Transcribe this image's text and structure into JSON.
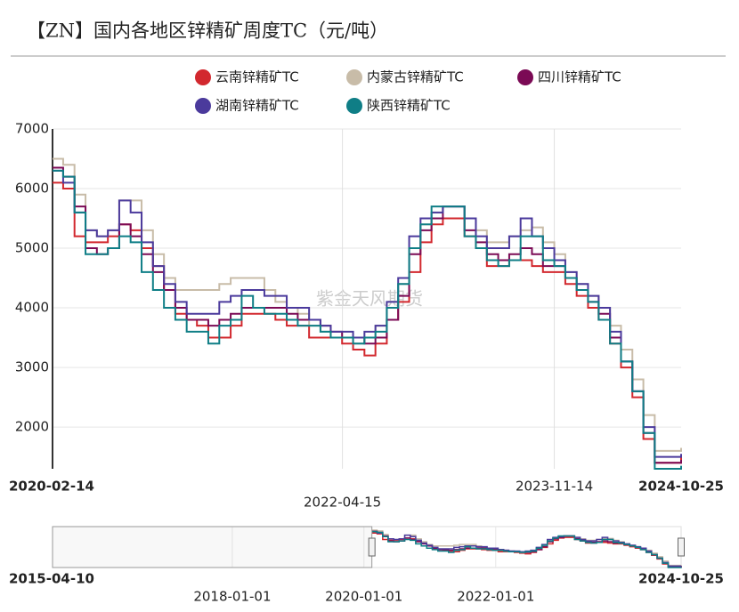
{
  "chart_data": {
    "type": "line",
    "step": true,
    "title": "【ZN】国内各地区锌精矿周度TC（元/吨）",
    "watermark": "紫金天风期货",
    "x": [
      "2020-02-14",
      "2020-03-14",
      "2020-04-14",
      "2020-05-14",
      "2020-06-14",
      "2020-07-14",
      "2020-08-14",
      "2020-09-14",
      "2020-10-14",
      "2020-11-14",
      "2020-12-14",
      "2021-01-14",
      "2021-02-14",
      "2021-03-14",
      "2021-04-14",
      "2021-05-14",
      "2021-06-14",
      "2021-07-14",
      "2021-08-14",
      "2021-09-14",
      "2021-10-14",
      "2021-11-14",
      "2021-12-14",
      "2022-01-14",
      "2022-02-14",
      "2022-03-14",
      "2022-04-14",
      "2022-05-14",
      "2022-06-14",
      "2022-07-14",
      "2022-08-14",
      "2022-09-14",
      "2022-10-14",
      "2022-11-14",
      "2022-12-14",
      "2023-01-14",
      "2023-02-14",
      "2023-03-14",
      "2023-04-14",
      "2023-05-14",
      "2023-06-14",
      "2023-07-14",
      "2023-08-14",
      "2023-09-14",
      "2023-10-14",
      "2023-11-14",
      "2023-12-14",
      "2024-01-14",
      "2024-02-14",
      "2024-03-14",
      "2024-04-14",
      "2024-05-14",
      "2024-06-14",
      "2024-07-14",
      "2024-08-14",
      "2024-09-14",
      "2024-10-14",
      "2024-10-25"
    ],
    "series": [
      {
        "name": "云南锌精矿TC",
        "color": "#d2282e",
        "values": [
          6100,
          6000,
          5200,
          5100,
          5100,
          5200,
          5400,
          5300,
          5000,
          4700,
          4300,
          3900,
          3800,
          3700,
          3500,
          3500,
          3700,
          3900,
          3900,
          3900,
          3800,
          3700,
          3700,
          3500,
          3500,
          3500,
          3400,
          3300,
          3200,
          3400,
          3800,
          4100,
          4600,
          5100,
          5400,
          5500,
          5500,
          5200,
          5000,
          4700,
          4700,
          4800,
          4800,
          4700,
          4600,
          4600,
          4400,
          4200,
          4000,
          3800,
          3400,
          3000,
          2500,
          1800,
          1400,
          1400,
          1400,
          1500
        ]
      },
      {
        "name": "内蒙古锌精矿TC",
        "color": "#c8bca8",
        "values": [
          6500,
          6400,
          5900,
          5300,
          5200,
          5300,
          5800,
          5800,
          5300,
          4900,
          4500,
          4300,
          4300,
          4300,
          4300,
          4400,
          4500,
          4500,
          4500,
          4300,
          4100,
          4000,
          3900,
          3700,
          3600,
          3500,
          3500,
          3400,
          3500,
          3700,
          4000,
          4400,
          5000,
          5400,
          5600,
          5700,
          5700,
          5500,
          5300,
          5100,
          5100,
          5200,
          5300,
          5350,
          5100,
          4900,
          4600,
          4400,
          4200,
          4000,
          3700,
          3300,
          2800,
          2200,
          1600,
          1600,
          1600,
          1650
        ]
      },
      {
        "name": "四川锌精矿TC",
        "color": "#7b0a55",
        "values": [
          6350,
          6200,
          5700,
          5000,
          4900,
          5000,
          5400,
          5200,
          4900,
          4600,
          4300,
          4000,
          3800,
          3800,
          3700,
          3800,
          3900,
          4000,
          4000,
          4000,
          4000,
          3900,
          3800,
          3800,
          3700,
          3600,
          3500,
          3500,
          3400,
          3500,
          3800,
          4200,
          4900,
          5300,
          5500,
          5700,
          5700,
          5300,
          5100,
          4900,
          4800,
          4900,
          5000,
          4900,
          4700,
          4700,
          4500,
          4300,
          4100,
          3900,
          3500,
          3100,
          2600,
          1900,
          1400,
          1400,
          1400,
          1450
        ]
      },
      {
        "name": "湖南锌精矿TC",
        "color": "#4b3a9c",
        "values": [
          6300,
          6100,
          5600,
          5300,
          5200,
          5300,
          5800,
          5600,
          5100,
          4700,
          4400,
          4100,
          3900,
          3900,
          3900,
          4100,
          4200,
          4300,
          4300,
          4200,
          4200,
          4000,
          4000,
          3800,
          3700,
          3600,
          3600,
          3500,
          3600,
          3700,
          4100,
          4500,
          5200,
          5500,
          5600,
          5700,
          5700,
          5500,
          5200,
          5000,
          5000,
          5200,
          5500,
          5200,
          5000,
          4800,
          4600,
          4400,
          4200,
          4000,
          3600,
          3100,
          2600,
          2000,
          1500,
          1500,
          1500,
          1550
        ]
      },
      {
        "name": "陕西锌精矿TC",
        "color": "#0f7e86",
        "values": [
          6300,
          6200,
          5600,
          4900,
          4900,
          5000,
          5200,
          5100,
          4600,
          4300,
          4000,
          3800,
          3600,
          3600,
          3400,
          3700,
          3800,
          4200,
          4000,
          3900,
          3900,
          3800,
          3700,
          3700,
          3600,
          3500,
          3500,
          3400,
          3500,
          3600,
          4000,
          4400,
          5000,
          5400,
          5700,
          5700,
          5700,
          5200,
          5000,
          4800,
          4700,
          4800,
          5200,
          5200,
          4800,
          4700,
          4500,
          4300,
          4100,
          3800,
          3400,
          3100,
          2600,
          1900,
          1300,
          1300,
          1300,
          1350
        ]
      }
    ],
    "xlim": [
      "2020-02-14",
      "2024-10-25"
    ],
    "xticks": [
      "2020-02-14",
      "2022-04-15",
      "2023-11-14",
      "2024-10-25"
    ],
    "ylim": [
      1300,
      7000
    ],
    "yticks": [
      2000,
      3000,
      4000,
      5000,
      6000,
      7000
    ],
    "grid": true,
    "navigator": {
      "xlim": [
        "2015-04-10",
        "2024-10-25"
      ],
      "xticks": [
        "2015-04-10",
        "2018-01-01",
        "2020-01-01",
        "2022-01-01",
        "2024-10-25"
      ]
    }
  }
}
